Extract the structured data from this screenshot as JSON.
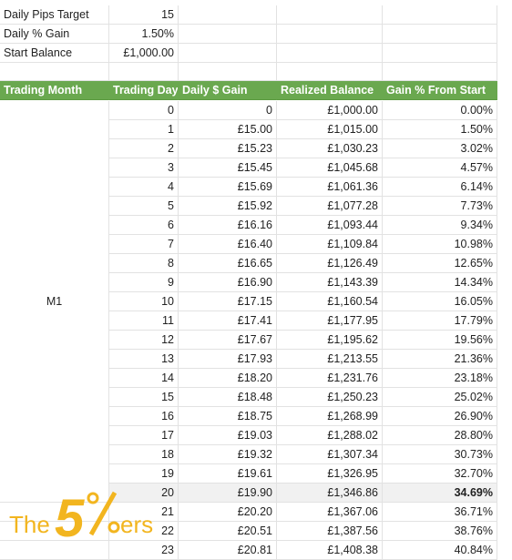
{
  "settings": [
    {
      "label": "Daily Pips Target",
      "value": "15"
    },
    {
      "label": "Daily % Gain",
      "value": "1.50%"
    },
    {
      "label": "Start Balance",
      "value": "£1,000.00"
    }
  ],
  "table": {
    "headers": [
      "Trading Month",
      "Trading Day",
      "Daily $ Gain",
      "Realized Balance",
      "Gain % From Start"
    ],
    "month_label": "M1",
    "rows": [
      [
        "0",
        "0",
        "£1,000.00",
        "0.00%"
      ],
      [
        "1",
        "£15.00",
        "£1,015.00",
        "1.50%"
      ],
      [
        "2",
        "£15.23",
        "£1,030.23",
        "3.02%"
      ],
      [
        "3",
        "£15.45",
        "£1,045.68",
        "4.57%"
      ],
      [
        "4",
        "£15.69",
        "£1,061.36",
        "6.14%"
      ],
      [
        "5",
        "£15.92",
        "£1,077.28",
        "7.73%"
      ],
      [
        "6",
        "£16.16",
        "£1,093.44",
        "9.34%"
      ],
      [
        "7",
        "£16.40",
        "£1,109.84",
        "10.98%"
      ],
      [
        "8",
        "£16.65",
        "£1,126.49",
        "12.65%"
      ],
      [
        "9",
        "£16.90",
        "£1,143.39",
        "14.34%"
      ],
      [
        "10",
        "£17.15",
        "£1,160.54",
        "16.05%"
      ],
      [
        "11",
        "£17.41",
        "£1,177.95",
        "17.79%"
      ],
      [
        "12",
        "£17.67",
        "£1,195.62",
        "19.56%"
      ],
      [
        "13",
        "£17.93",
        "£1,213.55",
        "21.36%"
      ],
      [
        "14",
        "£18.20",
        "£1,231.76",
        "23.18%"
      ],
      [
        "15",
        "£18.48",
        "£1,250.23",
        "25.02%"
      ],
      [
        "16",
        "£18.75",
        "£1,268.99",
        "26.90%"
      ],
      [
        "17",
        "£19.03",
        "£1,288.02",
        "28.80%"
      ],
      [
        "18",
        "£19.32",
        "£1,307.34",
        "30.73%"
      ],
      [
        "19",
        "£19.61",
        "£1,326.95",
        "32.70%"
      ],
      [
        "20",
        "£19.90",
        "£1,346.86",
        "34.69%"
      ],
      [
        "21",
        "£20.20",
        "£1,367.06",
        "36.71%"
      ],
      [
        "22",
        "£20.51",
        "£1,387.56",
        "38.76%"
      ],
      [
        "23",
        "£20.81",
        "£1,408.38",
        "40.84%"
      ]
    ],
    "highlighted_day": "20"
  },
  "watermark": {
    "text_the": "The",
    "text_5": "5",
    "text_ers": "ers",
    "color": "#f2b51f"
  }
}
